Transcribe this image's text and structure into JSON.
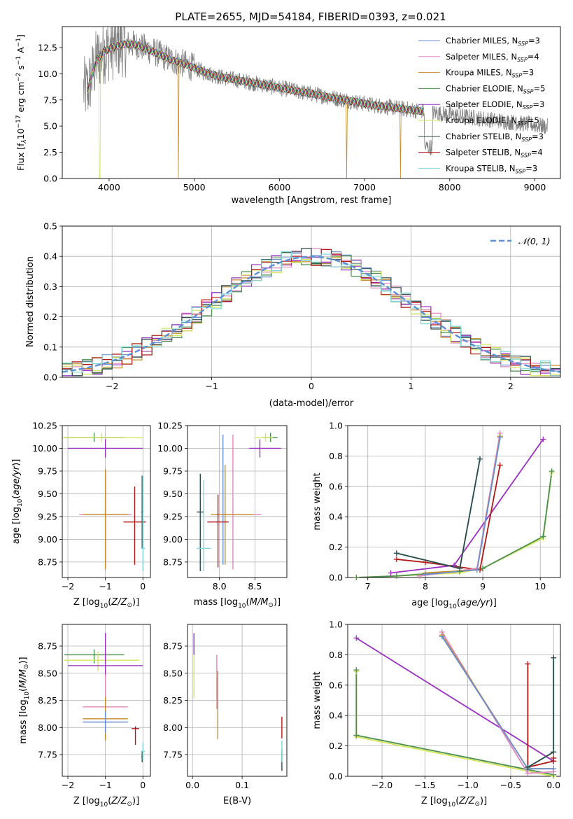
{
  "figure_title": "PLATE=2655, MJD=54184, FIBERID=0393, z=0.021",
  "colors": {
    "Chabrier MILES": "#6b8fd6",
    "Salpeter MILES": "#e088bd",
    "Kroupa MILES": "#c98c2a",
    "Chabrier ELODIE": "#4a8f4a",
    "Salpeter ELODIE": "#9b30c2",
    "Kroupa ELODIE": "#d5e65c",
    "Chabrier STELIB": "#2b4a4a",
    "Salpeter STELIB": "#b01818",
    "Kroupa STELIB": "#7ed7d8",
    "data": "#808080",
    "normal": "#5b8fd6",
    "combined_orange": "#e9823a",
    "combined_yellowgreen": "#c6e35a"
  },
  "chart_data": [
    {
      "id": "spectrum",
      "type": "line",
      "title": "PLATE=2655, MJD=54184, FIBERID=0393, z=0.021",
      "xlabel": "wavelength [Angstrom, rest frame]",
      "ylabel": "Flux [f_λ 10^-17 erg cm^-2 s^-1 A^-1]",
      "xlim": [
        3450,
        9300
      ],
      "ylim": [
        0,
        14.5
      ],
      "xticks": [
        4000,
        5000,
        6000,
        7000,
        8000,
        9000
      ],
      "yticks": [
        0.0,
        2.5,
        5.0,
        7.5,
        10.0,
        12.5
      ],
      "grid": false,
      "legend_position": "top-right",
      "legend": [
        {
          "label": "Chabrier MILES, N_SSP=3",
          "series": "Chabrier MILES"
        },
        {
          "label": "Salpeter MILES, N_SSP=4",
          "series": "Salpeter MILES"
        },
        {
          "label": "Kroupa MILES, N_SSP=3",
          "series": "Kroupa MILES"
        },
        {
          "label": "Chabrier ELODIE, N_SSP=5",
          "series": "Chabrier ELODIE"
        },
        {
          "label": "Salpeter ELODIE, N_SSP=3",
          "series": "Salpeter ELODIE"
        },
        {
          "label": "Kroupa ELODIE, N_SSP=5",
          "series": "Kroupa ELODIE"
        },
        {
          "label": "Chabrier STELIB, N_SSP=3",
          "series": "Chabrier STELIB"
        },
        {
          "label": "Salpeter STELIB, N_SSP=4",
          "series": "Salpeter STELIB"
        },
        {
          "label": "Kroupa STELIB, N_SSP=3",
          "series": "Kroupa STELIB"
        }
      ],
      "continuum": {
        "x": [
          3750,
          3850,
          3950,
          4050,
          4150,
          4300,
          4500,
          4700,
          4900,
          5100,
          5300,
          5500,
          5700,
          5900,
          6100,
          6300,
          6500,
          6700,
          6900,
          7100,
          7300,
          7500,
          7700
        ],
        "y": [
          8.5,
          11.2,
          12.2,
          12.5,
          12.8,
          12.8,
          12.2,
          11.4,
          10.9,
          10.2,
          9.7,
          9.4,
          9.1,
          8.8,
          8.5,
          8.2,
          7.9,
          7.6,
          7.3,
          7.0,
          6.8,
          6.6,
          6.4
        ]
      },
      "data_x_range": [
        3700,
        9150
      ],
      "dips": [
        {
          "series": "Kroupa ELODIE",
          "x": 3890,
          "y": 0.0
        },
        {
          "series": "Kroupa MILES",
          "x": 4815,
          "y": 0.0
        },
        {
          "series": "Kroupa MILES",
          "x": 6790,
          "y": 0.0
        },
        {
          "series": "Kroupa MILES",
          "x": 7420,
          "y": 0.0
        }
      ]
    },
    {
      "id": "residual_hist",
      "type": "histogram",
      "xlabel": "(data-model)/error",
      "ylabel": "Normed distribution",
      "xlim": [
        -2.5,
        2.5
      ],
      "ylim": [
        0,
        0.5
      ],
      "xticks": [
        -2,
        -1,
        0,
        1,
        2
      ],
      "yticks": [
        0.0,
        0.1,
        0.2,
        0.3,
        0.4,
        0.5
      ],
      "grid": true,
      "legend_position": "top-right",
      "legend": [
        {
          "label": "𝒩(0, 1)",
          "series": "normal"
        }
      ],
      "bin_width": 0.1,
      "bin_start": -2.5
    },
    {
      "id": "age_vs_Z",
      "type": "errorbar",
      "xlabel": "Z [log10(Z/Z☉)]",
      "ylabel": "age  [log10(age/yr)]",
      "xlim": [
        -2.15,
        0.2
      ],
      "ylim": [
        8.58,
        10.25
      ],
      "xticks": [
        -2,
        -1,
        0
      ],
      "yticks": [
        8.75,
        9.0,
        9.25,
        9.5,
        9.75,
        10.0,
        10.25
      ],
      "grid": true,
      "points": [
        {
          "series": "Chabrier ELODIE",
          "x": -1.3,
          "xerr": [
            0.8,
            0.8
          ],
          "y": 10.12,
          "yerr": [
            0.05,
            0.05
          ]
        },
        {
          "series": "Kroupa ELODIE",
          "x": -1.1,
          "xerr": [
            1.1,
            1.1
          ],
          "y": 10.12,
          "yerr": [
            0.05,
            0.05
          ]
        },
        {
          "series": "Salpeter ELODIE",
          "x": -1.0,
          "xerr": [
            1.0,
            1.0
          ],
          "y": 10.0,
          "yerr": [
            0.1,
            0.1
          ]
        },
        {
          "series": "Chabrier MILES",
          "x": -1.0,
          "xerr": [
            0.6,
            0.6
          ],
          "y": 9.27,
          "yerr": [
            0.6,
            0.45
          ]
        },
        {
          "series": "Salpeter MILES",
          "x": -1.0,
          "xerr": [
            0.7,
            0.7
          ],
          "y": 9.27,
          "yerr": [
            0.5,
            0.5
          ]
        },
        {
          "series": "Kroupa MILES",
          "x": -1.0,
          "xerr": [
            0.6,
            0.6
          ],
          "y": 9.27,
          "yerr": [
            0.6,
            0.5
          ]
        },
        {
          "series": "Salpeter STELIB",
          "x": -0.22,
          "xerr": [
            0.3,
            0.3
          ],
          "y": 9.19,
          "yerr": [
            0.47,
            0.39
          ]
        },
        {
          "series": "Chabrier STELIB",
          "x": -0.02,
          "xerr": [
            0.02,
            0.02
          ],
          "y": 9.3,
          "yerr": [
            0.4,
            0.4
          ]
        },
        {
          "series": "Kroupa STELIB",
          "x": 0.0,
          "xerr": [
            0.05,
            0.05
          ],
          "y": 8.9,
          "yerr": [
            0.25,
            0.8
          ]
        }
      ]
    },
    {
      "id": "age_vs_mass",
      "type": "errorbar",
      "xlabel": "mass [log10(M/M☉)]",
      "ylabel": "",
      "xlim": [
        7.55,
        8.95
      ],
      "ylim": [
        8.58,
        10.25
      ],
      "xticks": [
        8.0,
        8.5
      ],
      "yticks": [
        8.75,
        9.0,
        9.25,
        9.5,
        9.75,
        10.0,
        10.25
      ],
      "grid": true,
      "points": [
        {
          "series": "Chabrier ELODIE",
          "x": 8.72,
          "xerr": [
            0.1,
            0.1
          ],
          "y": 10.12,
          "yerr": [
            0.05,
            0.05
          ]
        },
        {
          "series": "Kroupa ELODIE",
          "x": 8.65,
          "xerr": [
            0.15,
            0.1
          ],
          "y": 10.12,
          "yerr": [
            0.05,
            0.05
          ]
        },
        {
          "series": "Salpeter ELODIE",
          "x": 8.57,
          "xerr": [
            0.15,
            0.3
          ],
          "y": 10.0,
          "yerr": [
            0.1,
            0.1
          ]
        },
        {
          "series": "Chabrier MILES",
          "x": 8.05,
          "xerr": [
            0.1,
            0.1
          ],
          "y": 9.27,
          "yerr": [
            0.55,
            0.88
          ]
        },
        {
          "series": "Salpeter MILES",
          "x": 8.19,
          "xerr": [
            0.2,
            0.4
          ],
          "y": 9.27,
          "yerr": [
            0.6,
            0.88
          ]
        },
        {
          "series": "Kroupa MILES",
          "x": 8.08,
          "xerr": [
            0.2,
            0.4
          ],
          "y": 9.27,
          "yerr": [
            0.55,
            0.55
          ]
        },
        {
          "series": "Salpeter STELIB",
          "x": 7.98,
          "xerr": [
            0.15,
            0.15
          ],
          "y": 9.19,
          "yerr": [
            0.5,
            0.3
          ]
        },
        {
          "series": "Chabrier STELIB",
          "x": 7.73,
          "xerr": [
            0.05,
            0.05
          ],
          "y": 9.3,
          "yerr": [
            0.65,
            0.42
          ]
        },
        {
          "series": "Kroupa STELIB",
          "x": 7.78,
          "xerr": [
            0.1,
            0.1
          ],
          "y": 8.9,
          "yerr": [
            0.25,
            0.75
          ]
        }
      ]
    },
    {
      "id": "weight_vs_age",
      "type": "line",
      "xlabel": "age  [log10(age/yr)]",
      "ylabel": "mass weight",
      "xlim": [
        6.65,
        10.35
      ],
      "ylim": [
        0.0,
        1.0
      ],
      "xticks": [
        7,
        8,
        9,
        10
      ],
      "yticks": [
        0.0,
        0.2,
        0.4,
        0.6,
        0.8,
        1.0
      ],
      "grid": true,
      "series": [
        {
          "name": "Kroupa ELODIE",
          "x": [
            6.8,
            7.5,
            8.6,
            9.0,
            10.05,
            10.2
          ],
          "y": [
            0.0,
            0.01,
            0.03,
            0.06,
            0.26,
            0.69
          ]
        },
        {
          "name": "Chabrier ELODIE",
          "x": [
            6.8,
            7.5,
            8.6,
            9.0,
            10.05,
            10.2
          ],
          "y": [
            0.0,
            0.01,
            0.04,
            0.06,
            0.27,
            0.7
          ]
        },
        {
          "name": "Salpeter ELODIE",
          "x": [
            7.4,
            8.5,
            10.05
          ],
          "y": [
            0.03,
            0.08,
            0.91
          ]
        },
        {
          "name": "Salpeter STELIB",
          "x": [
            7.5,
            8.0,
            8.95,
            9.3
          ],
          "y": [
            0.12,
            0.1,
            0.05,
            0.74
          ]
        },
        {
          "name": "Kroupa STELIB",
          "x": [
            7.5,
            8.6,
            8.95
          ],
          "y": [
            0.16,
            0.06,
            0.78
          ]
        },
        {
          "name": "Chabrier STELIB",
          "x": [
            7.5,
            8.6,
            8.95
          ],
          "y": [
            0.16,
            0.06,
            0.78
          ]
        },
        {
          "name": "Salpeter MILES",
          "x": [
            7.9,
            8.9,
            9.3
          ],
          "y": [
            0.01,
            0.06,
            0.95
          ]
        },
        {
          "name": "Kroupa MILES",
          "x": [
            8.0,
            8.9,
            9.3
          ],
          "y": [
            0.03,
            0.05,
            0.93
          ]
        },
        {
          "name": "Chabrier MILES",
          "x": [
            8.0,
            8.9,
            9.3
          ],
          "y": [
            0.02,
            0.05,
            0.92
          ]
        }
      ]
    },
    {
      "id": "mass_vs_Z",
      "type": "errorbar",
      "xlabel": "Z [log10(Z/Z☉)]",
      "ylabel": "mass [log10(M/M☉)]",
      "xlim": [
        -2.15,
        0.2
      ],
      "ylim": [
        7.55,
        8.95
      ],
      "xticks": [
        -2,
        -1,
        0
      ],
      "yticks": [
        7.75,
        8.0,
        8.25,
        8.5,
        8.75
      ],
      "grid": true,
      "points": [
        {
          "series": "Chabrier ELODIE",
          "x": -1.3,
          "xerr": [
            0.8,
            0.8
          ],
          "y": 8.67,
          "yerr": [
            0.08,
            0.05
          ]
        },
        {
          "series": "Kroupa ELODIE",
          "x": -1.2,
          "xerr": [
            0.9,
            1.1
          ],
          "y": 8.62,
          "yerr": [
            0.1,
            0.08
          ]
        },
        {
          "series": "Salpeter ELODIE",
          "x": -1.0,
          "xerr": [
            1.0,
            1.0
          ],
          "y": 8.57,
          "yerr": [
            0.12,
            0.3
          ]
        },
        {
          "series": "Salpeter MILES",
          "x": -1.0,
          "xerr": [
            0.6,
            0.6
          ],
          "y": 8.19,
          "yerr": [
            0.3,
            0.3
          ]
        },
        {
          "series": "Kroupa MILES",
          "x": -1.0,
          "xerr": [
            0.6,
            0.6
          ],
          "y": 8.08,
          "yerr": [
            0.2,
            0.2
          ]
        },
        {
          "series": "Chabrier MILES",
          "x": -1.0,
          "xerr": [
            0.6,
            0.6
          ],
          "y": 8.05,
          "yerr": [
            0.1,
            0.1
          ]
        },
        {
          "series": "Salpeter STELIB",
          "x": -0.2,
          "xerr": [
            0.1,
            0.1
          ],
          "y": 7.99,
          "yerr": [
            0.15,
            0.02
          ]
        },
        {
          "series": "Chabrier STELIB",
          "x": -0.02,
          "xerr": [
            0.02,
            0.02
          ],
          "y": 7.73,
          "yerr": [
            0.05,
            0.05
          ]
        },
        {
          "series": "Kroupa STELIB",
          "x": 0.0,
          "xerr": [
            0.05,
            0.05
          ],
          "y": 7.78,
          "yerr": [
            0.08,
            0.08
          ]
        }
      ]
    },
    {
      "id": "mass_vs_ebv",
      "type": "errorbar",
      "xlabel": "E(B-V)",
      "ylabel": "",
      "xlim": [
        -0.01,
        0.19
      ],
      "ylim": [
        7.55,
        8.95
      ],
      "xticks": [
        0.0,
        0.1
      ],
      "yticks": [
        7.75,
        8.0,
        8.25,
        8.5,
        8.75
      ],
      "grid": true,
      "points": [
        {
          "series": "Salpeter ELODIE",
          "x": 0.003,
          "xerr": [
            0,
            0
          ],
          "y": 8.77,
          "yerr": [
            0.1,
            0.1
          ]
        },
        {
          "series": "Kroupa ELODIE",
          "x": 0.003,
          "xerr": [
            0,
            0
          ],
          "y": 8.47,
          "yerr": [
            0.2,
            0.2
          ]
        },
        {
          "series": "Salpeter MILES",
          "x": 0.049,
          "xerr": [
            0,
            0
          ],
          "y": 8.42,
          "yerr": [
            0.25,
            0.25
          ]
        },
        {
          "series": "Kroupa MILES",
          "x": 0.051,
          "xerr": [
            0,
            0
          ],
          "y": 8.22,
          "yerr": [
            0.33,
            0.3
          ]
        },
        {
          "series": "Salpeter STELIB",
          "x": 0.18,
          "xerr": [
            0,
            0
          ],
          "y": 8.0,
          "yerr": [
            0.1,
            0.1
          ]
        },
        {
          "series": "Chabrier STELIB",
          "x": 0.18,
          "xerr": [
            0,
            0
          ],
          "y": 7.7,
          "yerr": [
            0.1,
            0.1
          ]
        },
        {
          "series": "Kroupa STELIB",
          "x": 0.18,
          "xerr": [
            0,
            0
          ],
          "y": 7.78,
          "yerr": [
            0.1,
            0.1
          ]
        }
      ]
    },
    {
      "id": "weight_vs_Z",
      "type": "line",
      "xlabel": "Z [log10(Z/Z☉)]",
      "ylabel": "mass weight",
      "xlim": [
        -2.4,
        0.08
      ],
      "ylim": [
        0.0,
        1.0
      ],
      "xticks": [
        -2.0,
        -1.5,
        -1.0,
        -0.5,
        0.0
      ],
      "yticks": [
        0.0,
        0.2,
        0.4,
        0.6,
        0.8,
        1.0
      ],
      "grid": true,
      "series": [
        {
          "name": "Salpeter ELODIE",
          "x": [
            -2.3,
            0.0
          ],
          "y": [
            0.91,
            0.1
          ]
        },
        {
          "name": "Kroupa ELODIE",
          "x": [
            -2.3,
            -2.3,
            0.0
          ],
          "y": [
            0.69,
            0.26,
            0.0
          ]
        },
        {
          "name": "Chabrier ELODIE",
          "x": [
            -2.3,
            -2.3,
            0.0
          ],
          "y": [
            0.7,
            0.27,
            0.01
          ]
        },
        {
          "name": "Salpeter MILES",
          "x": [
            -1.3,
            -0.3,
            0.0
          ],
          "y": [
            0.95,
            0.02,
            0.03
          ]
        },
        {
          "name": "Kroupa MILES",
          "x": [
            -1.3,
            -0.3,
            0.0
          ],
          "y": [
            0.93,
            0.05,
            0.05
          ]
        },
        {
          "name": "Chabrier MILES",
          "x": [
            -1.3,
            -0.3,
            0.0
          ],
          "y": [
            0.92,
            0.05,
            0.05
          ]
        },
        {
          "name": "Salpeter STELIB",
          "x": [
            -0.3,
            -0.3,
            0.0,
            0.0
          ],
          "y": [
            0.74,
            0.06,
            0.1,
            0.12
          ]
        },
        {
          "name": "Kroupa STELIB",
          "x": [
            -0.3,
            0.0,
            0.0
          ],
          "y": [
            0.06,
            0.16,
            0.78
          ]
        },
        {
          "name": "Chabrier STELIB",
          "x": [
            -0.3,
            0.0,
            0.0
          ],
          "y": [
            0.06,
            0.16,
            0.78
          ]
        }
      ]
    }
  ]
}
